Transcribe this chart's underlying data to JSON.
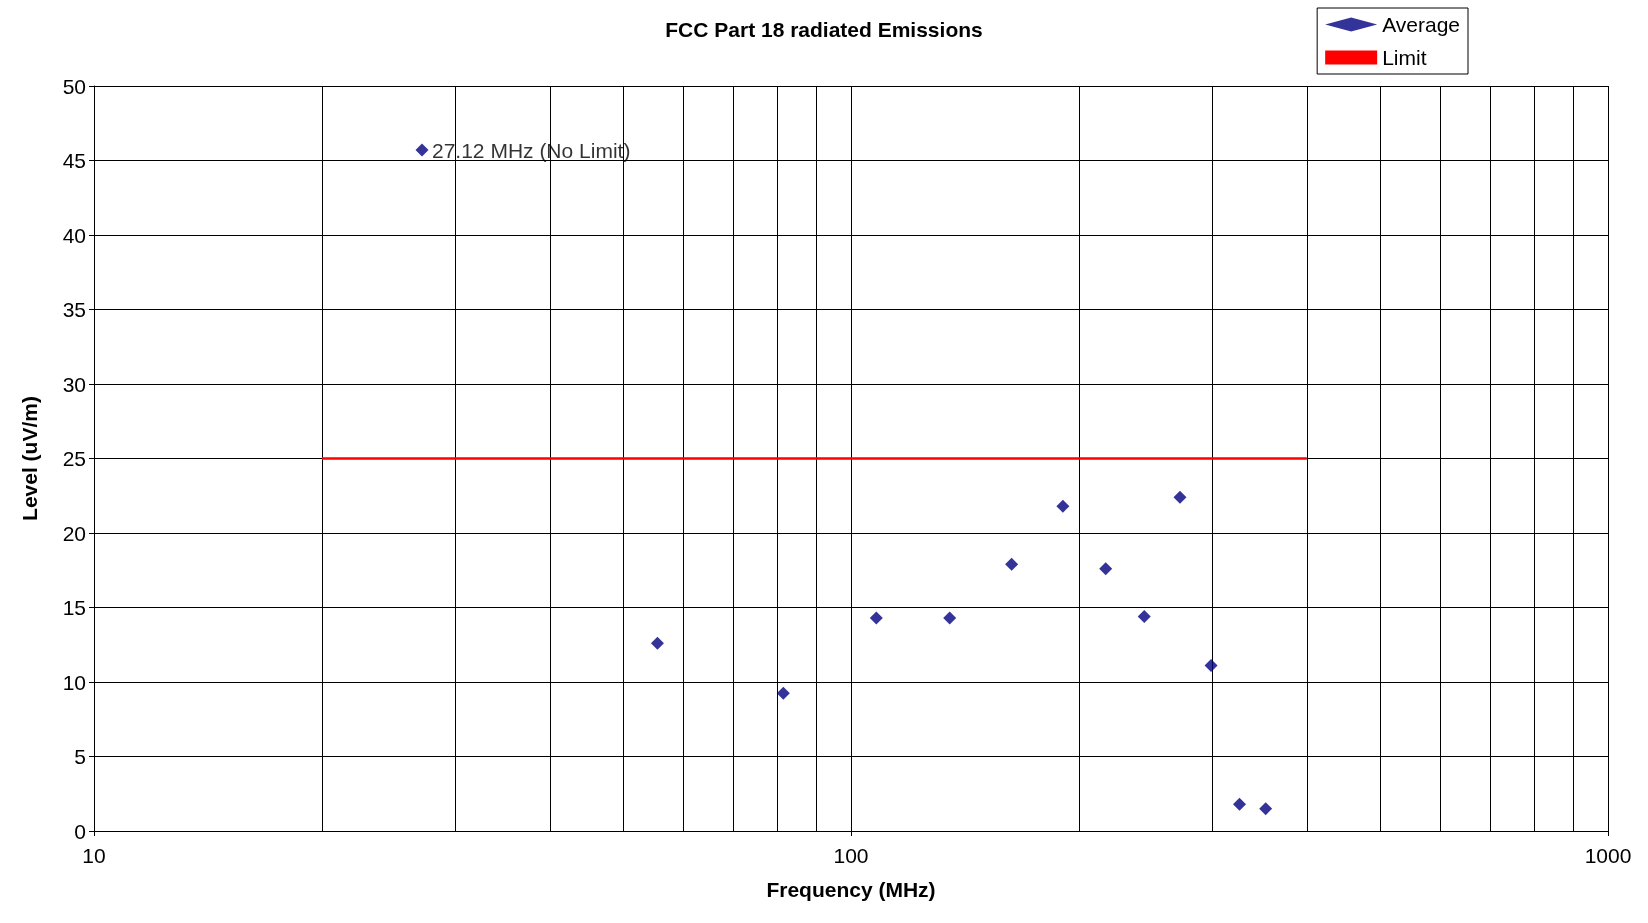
{
  "chart_data": {
    "type": "scatter",
    "title": "FCC Part 18 radiated Emissions",
    "xlabel": "Frequency (MHz)",
    "ylabel": "Level (uV/m)",
    "log": "x",
    "xlim": [
      10,
      1000
    ],
    "xticks": [
      10,
      100,
      1000
    ],
    "ylim": [
      0,
      50
    ],
    "yticks": [
      0,
      5,
      10,
      15,
      20,
      25,
      30,
      35,
      40,
      45,
      50
    ],
    "grid": true,
    "legend": "top right",
    "series": [
      {
        "name": "Average",
        "marker": "diamond",
        "color": "#000080",
        "x": [
          27.12,
          55.5,
          81.4,
          108,
          135,
          163,
          190.5,
          217,
          244,
          272,
          299,
          326,
          353
        ],
        "values": [
          45.7,
          12.6,
          9.25,
          14.3,
          14.3,
          17.9,
          21.8,
          17.6,
          14.4,
          22.4,
          11.1,
          1.8,
          1.5
        ]
      },
      {
        "name": "Limit",
        "type": "line",
        "marker": "none",
        "color": "#ff0000",
        "x": [
          20,
          400
        ],
        "values": [
          25,
          25
        ]
      }
    ],
    "annotations": [
      {
        "text": "27.12 MHz (No Limit)",
        "x": 27.12,
        "y": 45.7
      }
    ]
  }
}
